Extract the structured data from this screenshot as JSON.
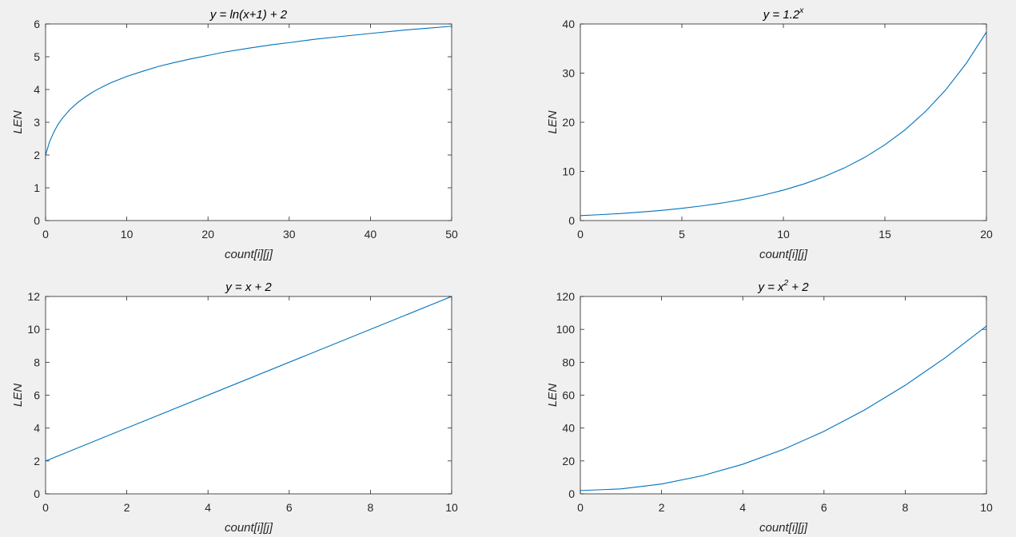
{
  "chart_data": [
    {
      "type": "line",
      "title": "y = ln(x+1) + 2",
      "title_parts": [
        {
          "text": "y = ln(x+1) + 2",
          "sup": false
        }
      ],
      "xlabel": "count[i][j]",
      "ylabel": "LEN",
      "xlim": [
        0,
        50
      ],
      "ylim": [
        0,
        6
      ],
      "xticks": [
        0,
        10,
        20,
        30,
        40,
        50
      ],
      "yticks": [
        0,
        1,
        2,
        3,
        4,
        5,
        6
      ],
      "series": [
        {
          "x": [
            0,
            0.5,
            1,
            1.5,
            2,
            3,
            4,
            5,
            6,
            7,
            8,
            10,
            12,
            14,
            16,
            18,
            20,
            22,
            25,
            28,
            30,
            33,
            36,
            40,
            44,
            47,
            50
          ],
          "y": [
            2.0,
            2.41,
            2.69,
            2.92,
            3.1,
            3.39,
            3.61,
            3.79,
            3.95,
            4.08,
            4.2,
            4.4,
            4.56,
            4.71,
            4.83,
            4.94,
            5.04,
            5.14,
            5.26,
            5.37,
            5.43,
            5.53,
            5.61,
            5.71,
            5.81,
            5.87,
            5.93
          ]
        }
      ]
    },
    {
      "type": "line",
      "title": "y = 1.2^x",
      "title_parts": [
        {
          "text": "y = 1.2",
          "sup": false
        },
        {
          "text": "x",
          "sup": true
        }
      ],
      "xlabel": "count[i][j]",
      "ylabel": "LEN",
      "xlim": [
        0,
        20
      ],
      "ylim": [
        0,
        40
      ],
      "xticks": [
        0,
        5,
        10,
        15,
        20
      ],
      "yticks": [
        0,
        10,
        20,
        30,
        40
      ],
      "series": [
        {
          "x": [
            0,
            1,
            2,
            3,
            4,
            5,
            6,
            7,
            8,
            9,
            10,
            11,
            12,
            13,
            14,
            15,
            16,
            17,
            18,
            19,
            20
          ],
          "y": [
            1.0,
            1.2,
            1.44,
            1.73,
            2.07,
            2.49,
            2.99,
            3.58,
            4.3,
            5.16,
            6.19,
            7.43,
            8.92,
            10.7,
            12.84,
            15.41,
            18.49,
            22.19,
            26.62,
            31.95,
            38.34
          ]
        }
      ]
    },
    {
      "type": "line",
      "title": "y = x + 2",
      "title_parts": [
        {
          "text": "y = x + 2",
          "sup": false
        }
      ],
      "xlabel": "count[i][j]",
      "ylabel": "LEN",
      "xlim": [
        0,
        10
      ],
      "ylim": [
        0,
        12
      ],
      "xticks": [
        0,
        2,
        4,
        6,
        8,
        10
      ],
      "yticks": [
        0,
        2,
        4,
        6,
        8,
        10,
        12
      ],
      "series": [
        {
          "x": [
            0,
            10
          ],
          "y": [
            2,
            12
          ]
        }
      ]
    },
    {
      "type": "line",
      "title": "y = x^2 + 2",
      "title_parts": [
        {
          "text": "y = x",
          "sup": false
        },
        {
          "text": "2",
          "sup": true
        },
        {
          "text": " + 2",
          "sup": false
        }
      ],
      "xlabel": "count[i][j]",
      "ylabel": "LEN",
      "xlim": [
        0,
        10
      ],
      "ylim": [
        0,
        120
      ],
      "xticks": [
        0,
        2,
        4,
        6,
        8,
        10
      ],
      "yticks": [
        0,
        20,
        40,
        60,
        80,
        100,
        120
      ],
      "series": [
        {
          "x": [
            0,
            1,
            2,
            3,
            4,
            5,
            6,
            7,
            8,
            9,
            10
          ],
          "y": [
            2,
            3,
            6,
            11,
            18,
            27,
            38,
            51,
            66,
            83,
            102
          ]
        }
      ]
    }
  ],
  "colors": {
    "figure_background": "#f0f0f0",
    "axes_background": "#ffffff",
    "axes_color": "#262626",
    "line_color": "#0072bd"
  }
}
